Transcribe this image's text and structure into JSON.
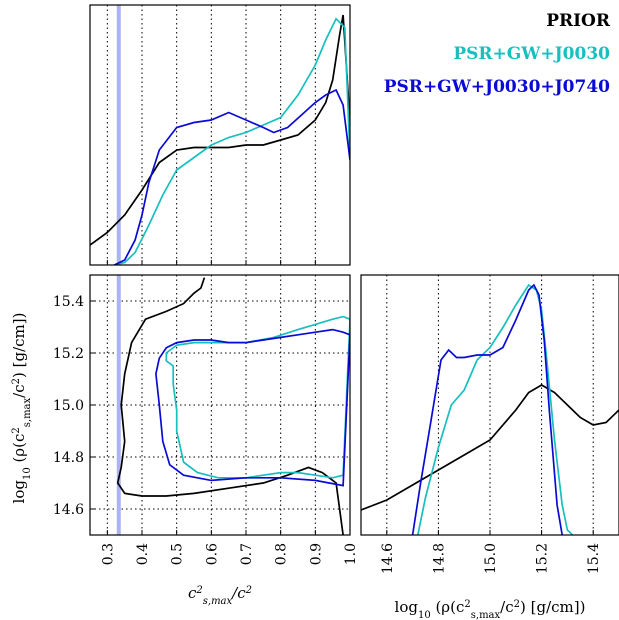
{
  "chart_data": [
    {
      "type": "line",
      "panel": "top-left marginal",
      "xlim": [
        0.25,
        1.0
      ],
      "xticks": [
        0.3,
        0.4,
        0.5,
        0.6,
        0.7,
        0.8,
        0.9,
        1.0
      ],
      "grid": "x dotted",
      "reference_line_x": 0.333,
      "series": [
        {
          "name": "PRIOR",
          "color": "#000000",
          "x": [
            0.25,
            0.3,
            0.35,
            0.4,
            0.45,
            0.5,
            0.55,
            0.6,
            0.65,
            0.7,
            0.75,
            0.8,
            0.85,
            0.9,
            0.93,
            0.95,
            0.97,
            0.98,
            1.0
          ],
          "y": [
            0.08,
            0.13,
            0.2,
            0.3,
            0.41,
            0.46,
            0.47,
            0.47,
            0.47,
            0.48,
            0.48,
            0.5,
            0.52,
            0.58,
            0.65,
            0.74,
            0.92,
            1.0,
            0.57
          ]
        },
        {
          "name": "PSR+GW+J0030",
          "color": "#17bfbf",
          "x": [
            0.32,
            0.35,
            0.38,
            0.42,
            0.46,
            0.5,
            0.55,
            0.6,
            0.65,
            0.7,
            0.75,
            0.8,
            0.85,
            0.9,
            0.93,
            0.96,
            0.985,
            1.0
          ],
          "y": [
            0.0,
            0.01,
            0.05,
            0.16,
            0.28,
            0.38,
            0.43,
            0.48,
            0.51,
            0.53,
            0.56,
            0.59,
            0.68,
            0.8,
            0.9,
            0.985,
            0.95,
            0.43
          ]
        },
        {
          "name": "PSR+GW+J0030+J0740",
          "color": "#0a0ad6",
          "x": [
            0.32,
            0.35,
            0.38,
            0.4,
            0.42,
            0.45,
            0.5,
            0.55,
            0.6,
            0.65,
            0.7,
            0.75,
            0.78,
            0.82,
            0.86,
            0.9,
            0.93,
            0.96,
            0.98,
            1.0
          ],
          "y": [
            0.0,
            0.02,
            0.1,
            0.2,
            0.33,
            0.46,
            0.55,
            0.57,
            0.58,
            0.61,
            0.58,
            0.55,
            0.53,
            0.55,
            0.6,
            0.65,
            0.68,
            0.7,
            0.64,
            0.42
          ]
        }
      ]
    },
    {
      "type": "contour",
      "panel": "bottom-left joint",
      "xlabel": "c²_s,max/c²",
      "ylabel": "log₁₀(ρ(c²_s,max/c²) [g/cm])",
      "xlim": [
        0.25,
        1.0
      ],
      "ylim": [
        14.5,
        15.5
      ],
      "xticks": [
        0.3,
        0.4,
        0.5,
        0.6,
        0.7,
        0.8,
        0.9,
        1.0
      ],
      "yticks": [
        14.6,
        14.8,
        15.0,
        15.2,
        15.4
      ],
      "grid": "dotted",
      "reference_line_x": 0.333,
      "series": [
        {
          "name": "PRIOR",
          "color": "#000000",
          "x": [
            0.58,
            0.57,
            0.55,
            0.52,
            0.47,
            0.41,
            0.37,
            0.35,
            0.34,
            0.35,
            0.34,
            0.33,
            0.35,
            0.4,
            0.47,
            0.55,
            0.65,
            0.75,
            0.82,
            0.88,
            0.92,
            0.96,
            0.97,
            0.98
          ],
          "y": [
            15.49,
            15.45,
            15.43,
            15.39,
            15.36,
            15.33,
            15.24,
            15.12,
            15.0,
            14.86,
            14.76,
            14.7,
            14.66,
            14.65,
            14.65,
            14.66,
            14.68,
            14.7,
            14.73,
            14.76,
            14.74,
            14.7,
            14.6,
            14.5
          ]
        },
        {
          "name": "PSR+GW+J0030",
          "color": "#17bfbf",
          "x": [
            0.47,
            0.5,
            0.55,
            0.6,
            0.7,
            0.78,
            0.85,
            0.9,
            0.95,
            0.98,
            1.0,
            0.98,
            0.95,
            0.9,
            0.85,
            0.8,
            0.75,
            0.7,
            0.62,
            0.56,
            0.52,
            0.5,
            0.5,
            0.49,
            0.49,
            0.47,
            0.47
          ],
          "y": [
            15.2,
            15.23,
            15.24,
            15.24,
            15.24,
            15.26,
            15.29,
            15.31,
            15.33,
            15.34,
            15.33,
            14.73,
            14.72,
            14.73,
            14.74,
            14.74,
            14.73,
            14.72,
            14.72,
            14.74,
            14.78,
            14.9,
            14.98,
            15.08,
            15.15,
            15.17,
            15.2
          ]
        },
        {
          "name": "PSR+GW+J0030+J0740",
          "color": "#0a0ad6",
          "x": [
            0.45,
            0.47,
            0.5,
            0.55,
            0.6,
            0.65,
            0.7,
            0.75,
            0.8,
            0.85,
            0.9,
            0.95,
            0.98,
            1.0,
            0.98,
            0.9,
            0.8,
            0.7,
            0.6,
            0.52,
            0.48,
            0.46,
            0.45,
            0.44,
            0.45
          ],
          "y": [
            15.18,
            15.22,
            15.24,
            15.25,
            15.25,
            15.24,
            15.24,
            15.25,
            15.26,
            15.27,
            15.28,
            15.29,
            15.28,
            15.27,
            14.69,
            14.71,
            14.72,
            14.72,
            14.71,
            14.73,
            14.77,
            14.86,
            15.0,
            15.12,
            15.18
          ]
        }
      ]
    },
    {
      "type": "line",
      "panel": "bottom-right marginal",
      "xlabel": "log₁₀(ρ(c²_s,max/c²) [g/cm])",
      "xlim": [
        14.5,
        15.5
      ],
      "xticks": [
        14.6,
        14.8,
        15.0,
        15.2,
        15.4
      ],
      "grid": "x dotted",
      "series": [
        {
          "name": "PRIOR",
          "color": "#000000",
          "x": [
            14.5,
            14.6,
            14.7,
            14.8,
            14.9,
            15.0,
            15.1,
            15.15,
            15.2,
            15.25,
            15.3,
            15.35,
            15.4,
            15.45,
            15.5
          ],
          "y": [
            0.1,
            0.14,
            0.2,
            0.26,
            0.32,
            0.38,
            0.5,
            0.57,
            0.6,
            0.57,
            0.52,
            0.47,
            0.44,
            0.45,
            0.5
          ]
        },
        {
          "name": "PSR+GW+J0030",
          "color": "#17bfbf",
          "x": [
            14.72,
            14.75,
            14.8,
            14.85,
            14.9,
            14.95,
            15.0,
            15.05,
            15.1,
            15.15,
            15.18,
            15.2,
            15.22,
            15.25,
            15.28,
            15.3,
            15.32
          ],
          "y": [
            0.0,
            0.15,
            0.35,
            0.52,
            0.58,
            0.7,
            0.75,
            0.83,
            0.92,
            1.0,
            0.98,
            0.9,
            0.7,
            0.38,
            0.12,
            0.02,
            0.0
          ]
        },
        {
          "name": "PSR+GW+J0030+J0740",
          "color": "#0a0ad6",
          "x": [
            14.7,
            14.73,
            14.77,
            14.81,
            14.84,
            14.87,
            14.9,
            14.95,
            15.0,
            15.05,
            15.1,
            15.15,
            15.17,
            15.19,
            15.21,
            15.23,
            15.26,
            15.28
          ],
          "y": [
            0.0,
            0.2,
            0.45,
            0.7,
            0.74,
            0.71,
            0.71,
            0.72,
            0.72,
            0.75,
            0.86,
            0.98,
            1.0,
            0.96,
            0.78,
            0.5,
            0.12,
            0.0
          ]
        }
      ]
    }
  ],
  "legend": {
    "placement": "top-right",
    "entries": [
      {
        "label": "PRIOR",
        "color": "#000000"
      },
      {
        "label": "PSR+GW+J0030",
        "color": "#17bfbf"
      },
      {
        "label": "PSR+GW+J0030+J0740",
        "color": "#0a0ad6"
      }
    ]
  },
  "axis_titles": {
    "x_left": "c²_s,max/c²",
    "x_right": "log₁₀(ρ(c²_s,max/c²) [g/cm])",
    "y_left": "log₁₀(ρ(c²_s,max/c²) [g/cm])"
  },
  "reference_line_color": "#aab4f0"
}
